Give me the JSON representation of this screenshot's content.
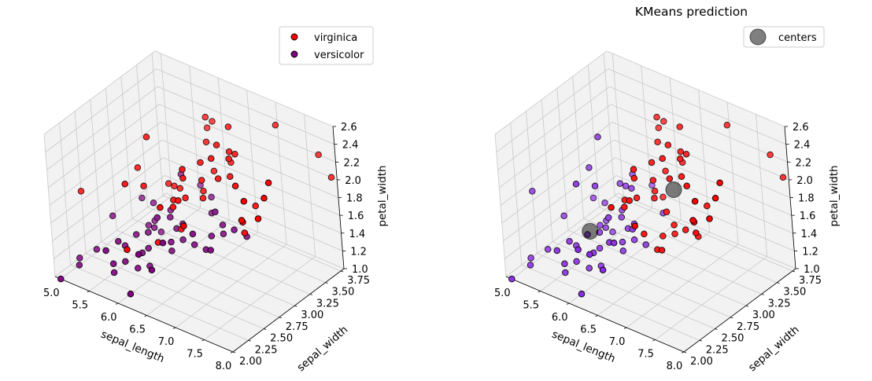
{
  "figure": {
    "background": "#ffffff",
    "pane_color": "#f2f2f2",
    "grid_color": "#c9c9c9"
  },
  "chart_data": [
    {
      "type": "scatter",
      "projection": "3d",
      "title": "",
      "xlabel": "sepal_length",
      "ylabel": "sepal_width",
      "zlabel": "petal_width",
      "xlim": [
        4.9,
        8.0
      ],
      "ylim": [
        2.0,
        3.8
      ],
      "zlim": [
        1.0,
        2.6
      ],
      "xticks": [
        "5.0",
        "5.5",
        "6.0",
        "6.5",
        "7.0",
        "7.5",
        "8.0"
      ],
      "yticks": [
        "2.00",
        "2.25",
        "2.50",
        "2.75",
        "3.00",
        "3.25",
        "3.50",
        "3.75"
      ],
      "zticks": [
        "1.0",
        "1.2",
        "1.4",
        "1.6",
        "1.8",
        "2.0",
        "2.2",
        "2.4",
        "2.6"
      ],
      "grid": true,
      "legend": {
        "position": "top-right"
      },
      "series": [
        {
          "name": "virginica",
          "color": "#ff0000",
          "edgecolor": "#000000",
          "points": [
            [
              6.3,
              3.3,
              2.5
            ],
            [
              5.8,
              2.7,
              1.9
            ],
            [
              7.1,
              3.0,
              2.1
            ],
            [
              6.3,
              2.9,
              1.8
            ],
            [
              6.5,
              3.0,
              2.2
            ],
            [
              7.6,
              3.0,
              2.1
            ],
            [
              4.9,
              2.5,
              1.7
            ],
            [
              7.3,
              2.9,
              1.8
            ],
            [
              6.7,
              2.5,
              1.8
            ],
            [
              7.2,
              3.6,
              2.5
            ],
            [
              6.5,
              3.2,
              2.0
            ],
            [
              6.4,
              2.7,
              1.9
            ],
            [
              6.8,
              3.0,
              2.1
            ],
            [
              5.7,
              2.5,
              2.0
            ],
            [
              5.8,
              2.8,
              2.4
            ],
            [
              6.4,
              3.2,
              2.3
            ],
            [
              6.5,
              3.0,
              1.8
            ],
            [
              7.7,
              3.8,
              2.2
            ],
            [
              7.7,
              2.6,
              2.3
            ],
            [
              6.0,
              2.2,
              1.5
            ],
            [
              6.9,
              3.2,
              2.3
            ],
            [
              5.6,
              2.8,
              2.0
            ],
            [
              7.7,
              2.8,
              2.0
            ],
            [
              6.3,
              2.7,
              1.8
            ],
            [
              6.7,
              3.3,
              2.1
            ],
            [
              7.2,
              3.2,
              1.8
            ],
            [
              6.2,
              2.8,
              1.8
            ],
            [
              6.1,
              3.0,
              1.8
            ],
            [
              6.4,
              2.8,
              2.1
            ],
            [
              7.2,
              3.0,
              1.6
            ],
            [
              7.4,
              2.8,
              1.9
            ],
            [
              7.9,
              3.8,
              2.0
            ],
            [
              6.4,
              2.8,
              2.2
            ],
            [
              6.3,
              2.8,
              1.5
            ],
            [
              6.1,
              2.6,
              1.4
            ],
            [
              7.7,
              3.0,
              2.3
            ],
            [
              6.3,
              3.4,
              2.4
            ],
            [
              6.4,
              3.1,
              1.8
            ],
            [
              6.0,
              3.0,
              1.8
            ],
            [
              6.9,
              3.1,
              2.1
            ],
            [
              6.7,
              3.1,
              2.4
            ],
            [
              6.9,
              3.1,
              2.3
            ],
            [
              6.8,
              3.2,
              2.3
            ],
            [
              6.7,
              3.3,
              2.5
            ],
            [
              6.7,
              3.0,
              2.3
            ],
            [
              6.3,
              2.5,
              1.9
            ],
            [
              6.5,
              3.0,
              2.0
            ],
            [
              6.2,
              3.4,
              2.3
            ],
            [
              5.9,
              3.0,
              1.8
            ]
          ]
        },
        {
          "name": "versicolor",
          "color": "#800080",
          "edgecolor": "#000000",
          "points": [
            [
              7.0,
              3.2,
              1.4
            ],
            [
              6.4,
              3.2,
              1.5
            ],
            [
              6.9,
              3.1,
              1.5
            ],
            [
              5.5,
              2.3,
              1.3
            ],
            [
              6.5,
              2.8,
              1.5
            ],
            [
              5.7,
              2.8,
              1.3
            ],
            [
              6.3,
              3.3,
              1.6
            ],
            [
              4.9,
              2.4,
              1.0
            ],
            [
              6.6,
              2.9,
              1.3
            ],
            [
              5.2,
              2.7,
              1.4
            ],
            [
              5.0,
              2.0,
              1.0
            ],
            [
              5.9,
              3.0,
              1.5
            ],
            [
              6.0,
              2.2,
              1.0
            ],
            [
              6.1,
              2.9,
              1.4
            ],
            [
              5.6,
              2.9,
              1.3
            ],
            [
              6.7,
              3.1,
              1.4
            ],
            [
              5.6,
              3.0,
              1.5
            ],
            [
              5.8,
              2.7,
              1.0
            ],
            [
              6.2,
              2.2,
              1.5
            ],
            [
              5.6,
              2.5,
              1.1
            ],
            [
              5.9,
              3.2,
              1.8
            ],
            [
              6.1,
              2.8,
              1.3
            ],
            [
              6.3,
              2.5,
              1.5
            ],
            [
              6.1,
              2.8,
              1.2
            ],
            [
              6.4,
              2.9,
              1.3
            ],
            [
              6.6,
              3.0,
              1.4
            ],
            [
              6.8,
              2.8,
              1.4
            ],
            [
              6.7,
              3.0,
              1.7
            ],
            [
              6.0,
              2.9,
              1.5
            ],
            [
              5.7,
              2.6,
              1.0
            ],
            [
              5.5,
              2.4,
              1.1
            ],
            [
              5.5,
              2.4,
              1.0
            ],
            [
              5.8,
              2.7,
              1.2
            ],
            [
              6.0,
              2.7,
              1.6
            ],
            [
              5.4,
              3.0,
              1.5
            ],
            [
              6.0,
              3.4,
              1.6
            ],
            [
              6.7,
              3.1,
              1.5
            ],
            [
              6.3,
              2.3,
              1.3
            ],
            [
              5.6,
              3.0,
              1.3
            ],
            [
              5.5,
              2.5,
              1.3
            ],
            [
              5.5,
              2.6,
              1.2
            ],
            [
              6.1,
              3.0,
              1.4
            ],
            [
              5.8,
              2.6,
              1.2
            ],
            [
              5.0,
              2.3,
              1.0
            ],
            [
              5.6,
              2.7,
              1.3
            ],
            [
              5.7,
              3.0,
              1.2
            ],
            [
              5.7,
              2.9,
              1.3
            ],
            [
              6.2,
              2.9,
              1.3
            ],
            [
              5.1,
              2.5,
              1.1
            ],
            [
              5.7,
              2.8,
              1.3
            ]
          ]
        }
      ]
    },
    {
      "type": "scatter",
      "projection": "3d",
      "title": "KMeans prediction",
      "xlabel": "sepal_length",
      "ylabel": "sepal_width",
      "zlabel": "petal_width",
      "xlim": [
        4.9,
        8.0
      ],
      "ylim": [
        2.0,
        3.8
      ],
      "zlim": [
        1.0,
        2.6
      ],
      "xticks": [
        "5.0",
        "5.5",
        "6.0",
        "6.5",
        "7.0",
        "7.5",
        "8.0"
      ],
      "yticks": [
        "2.00",
        "2.25",
        "2.50",
        "2.75",
        "3.00",
        "3.25",
        "3.50",
        "3.75"
      ],
      "zticks": [
        "1.0",
        "1.2",
        "1.4",
        "1.6",
        "1.8",
        "2.0",
        "2.2",
        "2.4",
        "2.6"
      ],
      "grid": true,
      "legend": {
        "position": "top-right"
      },
      "series": [
        {
          "name": "",
          "color": "#ff0000",
          "edgecolor": "#000000",
          "points": [
            [
              6.3,
              3.3,
              2.5
            ],
            [
              7.1,
              3.0,
              2.1
            ],
            [
              6.3,
              2.9,
              1.8
            ],
            [
              6.5,
              3.0,
              2.2
            ],
            [
              7.6,
              3.0,
              2.1
            ],
            [
              7.3,
              2.9,
              1.8
            ],
            [
              6.7,
              2.5,
              1.8
            ],
            [
              7.2,
              3.6,
              2.5
            ],
            [
              6.5,
              3.2,
              2.0
            ],
            [
              6.4,
              2.7,
              1.9
            ],
            [
              6.8,
              3.0,
              2.1
            ],
            [
              6.4,
              3.2,
              2.3
            ],
            [
              6.5,
              3.0,
              1.8
            ],
            [
              7.7,
              3.8,
              2.2
            ],
            [
              7.7,
              2.6,
              2.3
            ],
            [
              6.9,
              3.2,
              2.3
            ],
            [
              7.7,
              2.8,
              2.0
            ],
            [
              6.3,
              2.7,
              1.8
            ],
            [
              6.7,
              3.3,
              2.1
            ],
            [
              7.2,
              3.2,
              1.8
            ],
            [
              6.2,
              2.8,
              1.8
            ],
            [
              6.4,
              2.8,
              2.1
            ],
            [
              7.2,
              3.0,
              1.6
            ],
            [
              7.4,
              2.8,
              1.9
            ],
            [
              7.9,
              3.8,
              2.0
            ],
            [
              6.4,
              2.8,
              2.2
            ],
            [
              7.7,
              3.0,
              2.3
            ],
            [
              6.3,
              3.4,
              2.4
            ],
            [
              6.4,
              3.1,
              1.8
            ],
            [
              6.9,
              3.1,
              2.1
            ],
            [
              6.7,
              3.1,
              2.4
            ],
            [
              6.9,
              3.1,
              2.3
            ],
            [
              6.8,
              3.2,
              2.3
            ],
            [
              6.7,
              3.3,
              2.5
            ],
            [
              6.7,
              3.0,
              2.3
            ],
            [
              6.3,
              2.5,
              1.9
            ],
            [
              6.5,
              3.0,
              2.0
            ],
            [
              6.2,
              3.4,
              2.3
            ],
            [
              7.0,
              3.2,
              1.4
            ],
            [
              6.9,
              3.1,
              1.5
            ],
            [
              6.7,
              3.0,
              1.7
            ],
            [
              6.6,
              3.0,
              1.4
            ],
            [
              6.8,
              2.8,
              1.4
            ],
            [
              6.7,
              3.1,
              1.5
            ],
            [
              6.7,
              3.1,
              1.4
            ],
            [
              6.6,
              2.9,
              1.3
            ],
            [
              6.5,
              2.8,
              1.5
            ],
            [
              6.3,
              3.3,
              1.6
            ]
          ]
        },
        {
          "name": "",
          "color": "#8a2be2",
          "edgecolor": "#000000",
          "points": [
            [
              5.8,
              2.7,
              1.9
            ],
            [
              4.9,
              2.5,
              1.7
            ],
            [
              5.7,
              2.5,
              2.0
            ],
            [
              5.8,
              2.8,
              2.4
            ],
            [
              6.0,
              2.2,
              1.5
            ],
            [
              5.6,
              2.8,
              2.0
            ],
            [
              6.1,
              3.0,
              1.8
            ],
            [
              6.3,
              2.8,
              1.5
            ],
            [
              6.1,
              2.6,
              1.4
            ],
            [
              6.0,
              3.0,
              1.8
            ],
            [
              5.9,
              3.0,
              1.8
            ],
            [
              6.4,
              3.2,
              1.5
            ],
            [
              5.5,
              2.3,
              1.3
            ],
            [
              5.7,
              2.8,
              1.3
            ],
            [
              4.9,
              2.4,
              1.0
            ],
            [
              5.2,
              2.7,
              1.4
            ],
            [
              5.0,
              2.0,
              1.0
            ],
            [
              5.9,
              3.0,
              1.5
            ],
            [
              6.0,
              2.2,
              1.0
            ],
            [
              6.1,
              2.9,
              1.4
            ],
            [
              5.6,
              2.9,
              1.3
            ],
            [
              5.6,
              3.0,
              1.5
            ],
            [
              5.8,
              2.7,
              1.0
            ],
            [
              6.2,
              2.2,
              1.5
            ],
            [
              5.6,
              2.5,
              1.1
            ],
            [
              5.9,
              3.2,
              1.8
            ],
            [
              6.1,
              2.8,
              1.3
            ],
            [
              6.3,
              2.5,
              1.5
            ],
            [
              6.1,
              2.8,
              1.2
            ],
            [
              6.4,
              2.9,
              1.3
            ],
            [
              6.0,
              2.9,
              1.5
            ],
            [
              5.7,
              2.6,
              1.0
            ],
            [
              5.5,
              2.4,
              1.1
            ],
            [
              5.5,
              2.4,
              1.0
            ],
            [
              5.8,
              2.7,
              1.2
            ],
            [
              6.0,
              2.7,
              1.6
            ],
            [
              5.4,
              3.0,
              1.5
            ],
            [
              6.0,
              3.4,
              1.6
            ],
            [
              6.3,
              2.3,
              1.3
            ],
            [
              5.6,
              3.0,
              1.3
            ],
            [
              5.5,
              2.5,
              1.3
            ],
            [
              5.5,
              2.6,
              1.2
            ],
            [
              6.1,
              3.0,
              1.4
            ],
            [
              5.8,
              2.6,
              1.2
            ],
            [
              5.0,
              2.3,
              1.0
            ],
            [
              5.6,
              2.7,
              1.3
            ],
            [
              5.7,
              3.0,
              1.2
            ],
            [
              5.7,
              2.9,
              1.3
            ],
            [
              6.2,
              2.9,
              1.3
            ],
            [
              5.1,
              2.5,
              1.1
            ],
            [
              5.7,
              2.8,
              1.3
            ]
          ]
        },
        {
          "name": "centers",
          "color": "#000000",
          "opacity": 0.5,
          "points": [
            [
              6.8,
              3.05,
              1.95
            ],
            [
              5.65,
              2.7,
              1.35
            ]
          ]
        }
      ]
    }
  ]
}
